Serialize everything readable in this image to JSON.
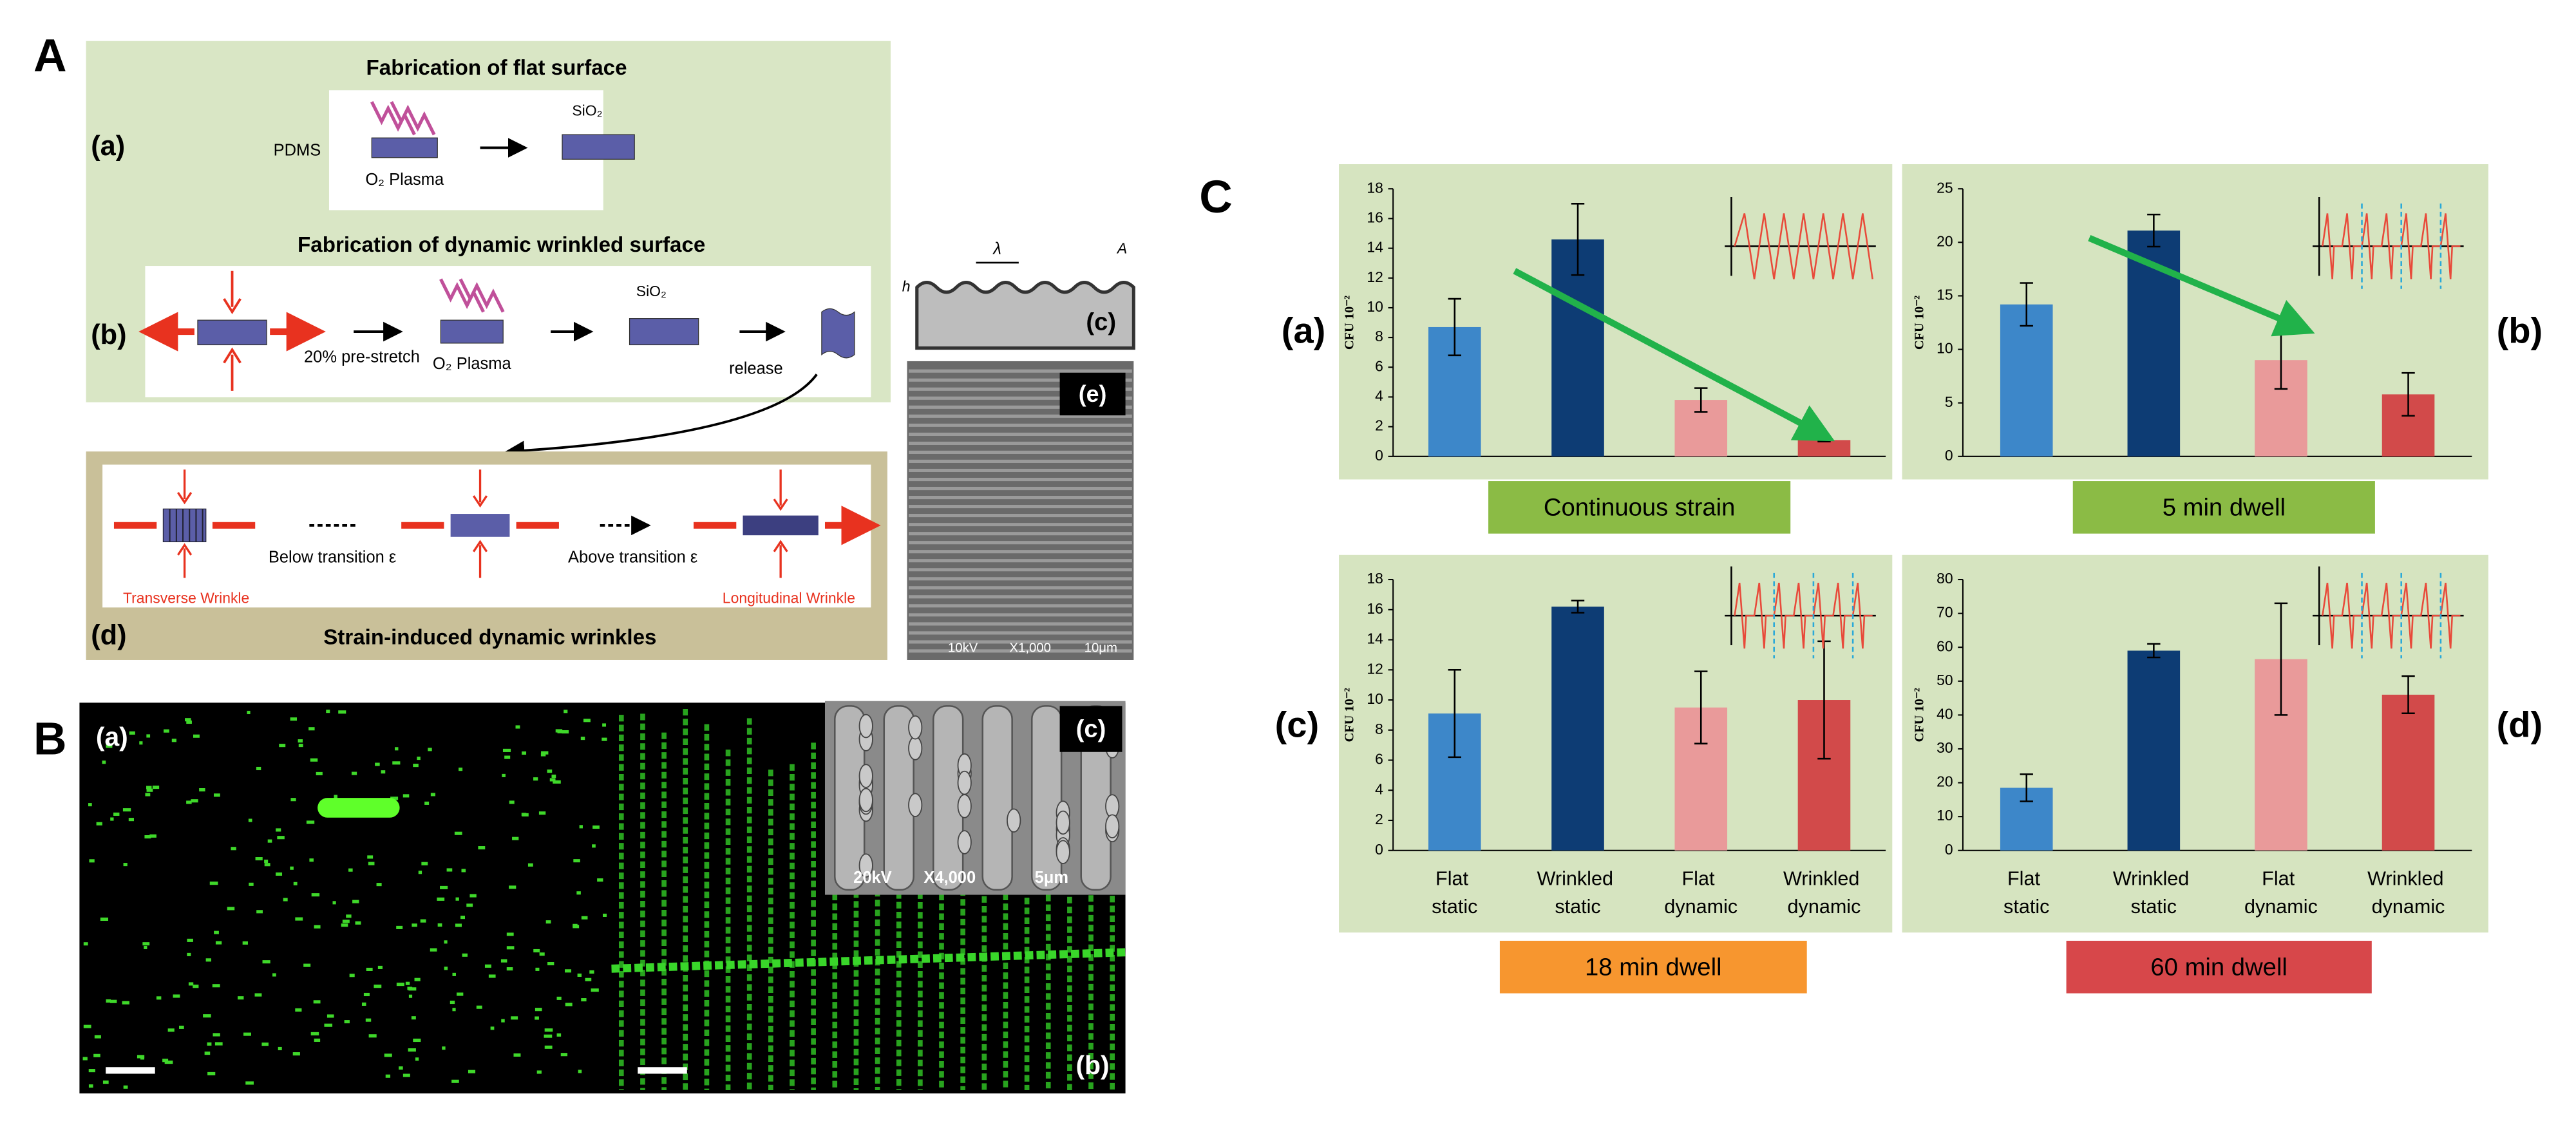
{
  "panel_a": {
    "label": "A",
    "flat": {
      "title": "Fabrication of flat surface",
      "label": "(a)",
      "pdms": "PDMS",
      "plasma": "O₂ Plasma",
      "sio2": "SiO₂"
    },
    "wrinkled": {
      "title": "Fabrication of dynamic wrinkled surface",
      "label": "(b)",
      "prestretch": "20% pre-stretch",
      "plasma": "O₂ Plasma",
      "sio2": "SiO₂",
      "release": "release"
    },
    "profile": {
      "label": "(c)",
      "lambda": "λ",
      "h": "h",
      "amp": "A"
    },
    "sem": {
      "label": "(e)",
      "kv": "10kV",
      "mag": "X1,000",
      "scale": "10μm"
    },
    "dynamic": {
      "label": "(d)",
      "title": "Strain-induced dynamic wrinkles",
      "transverse": "Transverse Wrinkle",
      "below": "Below transition ε",
      "above": "Above transition ε",
      "longitudinal": "Longitudinal Wrinkle"
    }
  },
  "panel_b": {
    "label": "B",
    "left": "(a)",
    "right": "(b)",
    "inset": {
      "label": "(c)",
      "kv": "20kV",
      "mag": "X4,000",
      "scale": "5μm"
    }
  },
  "panel_c_label": "C",
  "chart_data": [
    {
      "type": "bar",
      "label": "(a)",
      "ylabel": "CFU 10⁻²",
      "banner": "Continuous strain",
      "banner_color": "#8bbb45",
      "categories": [
        null,
        null,
        null,
        null
      ],
      "values": [
        8.7,
        14.6,
        3.8,
        1.1
      ],
      "errors": [
        1.9,
        2.4,
        0.8,
        0.1
      ],
      "colors": [
        "#3d87c9",
        "#0d3c74",
        "#e99a9a",
        "#d24a4a"
      ],
      "ylim": [
        0,
        18
      ],
      "yticks": [
        0,
        2,
        4,
        6,
        8,
        10,
        12,
        14,
        16,
        18
      ]
    },
    {
      "type": "bar",
      "label": "(b)",
      "ylabel": "CFU 10⁻²",
      "banner": "5 min dwell",
      "banner_color": "#8bbb45",
      "categories": [
        null,
        null,
        null,
        null
      ],
      "values": [
        14.2,
        21.1,
        9.0,
        5.8
      ],
      "errors": [
        2.0,
        1.5,
        2.7,
        2.0
      ],
      "colors": [
        "#3d87c9",
        "#0d3c74",
        "#e99a9a",
        "#d24a4a"
      ],
      "ylim": [
        0,
        25
      ],
      "yticks": [
        0,
        5,
        10,
        15,
        20,
        25
      ]
    },
    {
      "type": "bar",
      "label": "(c)",
      "ylabel": "CFU 10⁻²",
      "banner": "18 min dwell",
      "banner_color": "#f7962f",
      "categories": [
        "Flat static",
        "Wrinkled static",
        "Flat dynamic",
        "Wrinkled dynamic"
      ],
      "values": [
        9.1,
        16.2,
        9.5,
        10.0
      ],
      "errors": [
        2.9,
        0.4,
        2.4,
        3.9
      ],
      "colors": [
        "#3d87c9",
        "#0d3c74",
        "#e99a9a",
        "#d24a4a"
      ],
      "ylim": [
        0,
        18
      ],
      "yticks": [
        0,
        2,
        4,
        6,
        8,
        10,
        12,
        14,
        16,
        18
      ]
    },
    {
      "type": "bar",
      "label": "(d)",
      "ylabel": "CFU 10⁻²",
      "banner": "60 min dwell",
      "banner_color": "#d7474a",
      "categories": [
        "Flat static",
        "Wrinkled static",
        "Flat dynamic",
        "Wrinkled dynamic"
      ],
      "values": [
        18.5,
        59,
        56.5,
        46
      ],
      "errors": [
        4,
        2,
        16.5,
        5.5
      ],
      "colors": [
        "#3d87c9",
        "#0d3c74",
        "#e99a9a",
        "#d24a4a"
      ],
      "ylim": [
        0,
        80
      ],
      "yticks": [
        0,
        10,
        20,
        30,
        40,
        50,
        60,
        70,
        80
      ]
    }
  ]
}
